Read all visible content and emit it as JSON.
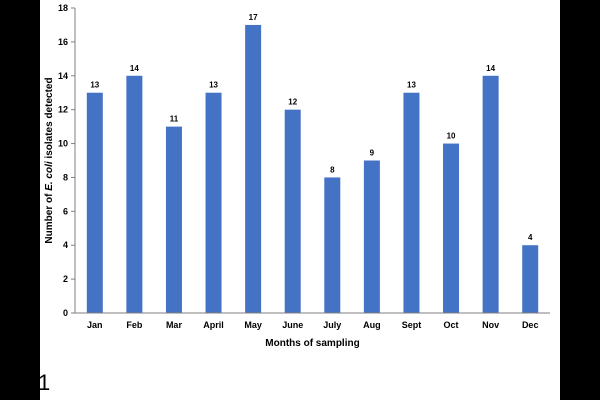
{
  "chart_data": {
    "type": "bar",
    "categories": [
      "Jan",
      "Feb",
      "Mar",
      "April",
      "May",
      "June",
      "July",
      "Aug",
      "Sept",
      "Oct",
      "Nov",
      "Dec"
    ],
    "values": [
      13,
      14,
      11,
      13,
      17,
      12,
      8,
      9,
      13,
      10,
      14,
      4
    ],
    "xlabel": "Months of sampling",
    "ylabel_prefix": "Number of ",
    "ylabel_italic": "E. coli",
    "ylabel_suffix": " isolates detected",
    "ylim": [
      0,
      18
    ],
    "yticks": [
      0,
      2,
      4,
      6,
      8,
      10,
      12,
      14,
      16,
      18
    ],
    "grid": false,
    "legend": "none",
    "bar_color": "#4472c4"
  },
  "figure_number": "1"
}
